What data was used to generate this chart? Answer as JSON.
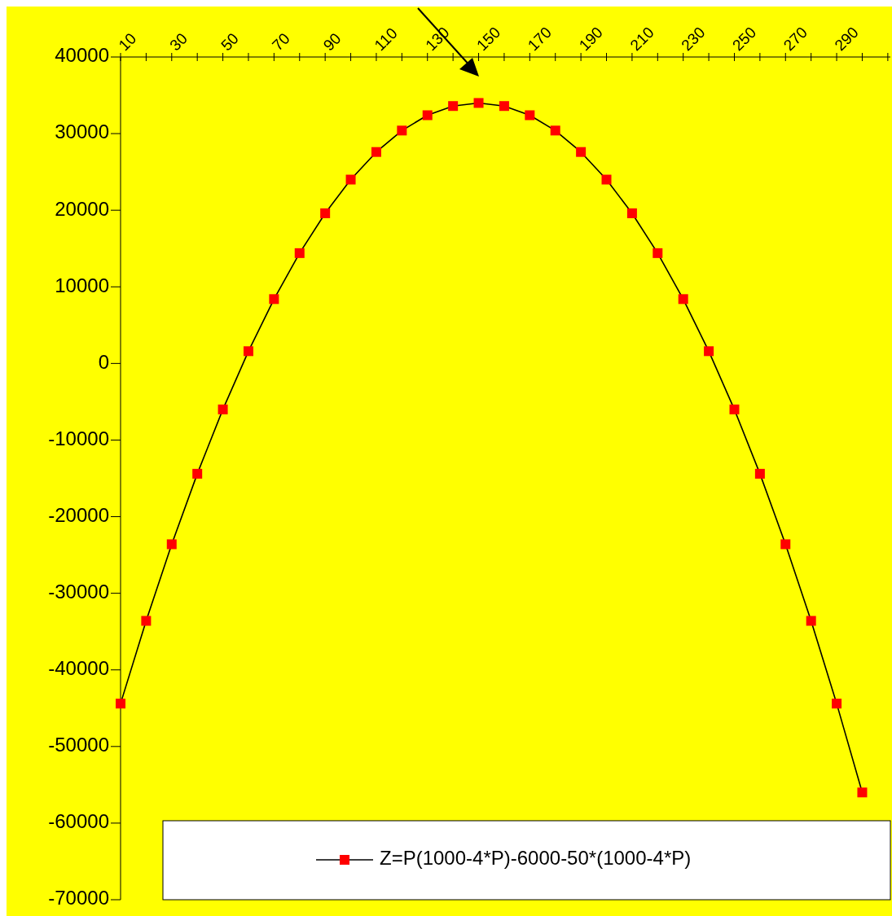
{
  "chart_data": {
    "type": "line",
    "x": [
      10,
      20,
      30,
      40,
      50,
      60,
      70,
      80,
      90,
      100,
      110,
      120,
      130,
      140,
      150,
      160,
      170,
      180,
      190,
      200,
      210,
      220,
      230,
      240,
      250,
      260,
      270,
      280,
      290,
      300
    ],
    "series": [
      {
        "name": "Z=P(1000-4*P)-6000-50*(1000-4*P)",
        "color": "#ff0000",
        "values": [
          -44400,
          -33600,
          -23600,
          -14400,
          -6000,
          1600,
          8400,
          14400,
          19600,
          24000,
          27600,
          30400,
          32400,
          33600,
          34000,
          33600,
          32400,
          30400,
          27600,
          24000,
          19600,
          14400,
          8400,
          1600,
          -6000,
          -14400,
          -23600,
          -33600,
          -44400,
          -56000
        ]
      }
    ],
    "xlim": [
      10,
      311
    ],
    "xticks": [
      10,
      {
        "value": 20,
        "label": null
      },
      30,
      {
        "value": 40,
        "label": null
      },
      50,
      {
        "value": 60,
        "label": null
      },
      70,
      {
        "value": 80,
        "label": null
      },
      90,
      {
        "value": 100,
        "label": null
      },
      110,
      {
        "value": 120,
        "label": null
      },
      130,
      {
        "value": 140,
        "label": null
      },
      150,
      {
        "value": 160,
        "label": null
      },
      170,
      {
        "value": 180,
        "label": null
      },
      190,
      {
        "value": 200,
        "label": null
      },
      210,
      {
        "value": 220,
        "label": null
      },
      230,
      {
        "value": 240,
        "label": null
      },
      250,
      {
        "value": 260,
        "label": null
      },
      270,
      {
        "value": 280,
        "label": null
      },
      290,
      {
        "value": 300,
        "label": null
      },
      {
        "value": 310,
        "label": null
      }
    ],
    "ylim": [
      -70000,
      40000
    ],
    "yticks": [
      -70000,
      -60000,
      -50000,
      -40000,
      -30000,
      -20000,
      -10000,
      0,
      10000,
      20000,
      30000,
      40000
    ],
    "marker": "square",
    "line_style": "solid",
    "grid": false,
    "legend": "bottom right"
  }
}
